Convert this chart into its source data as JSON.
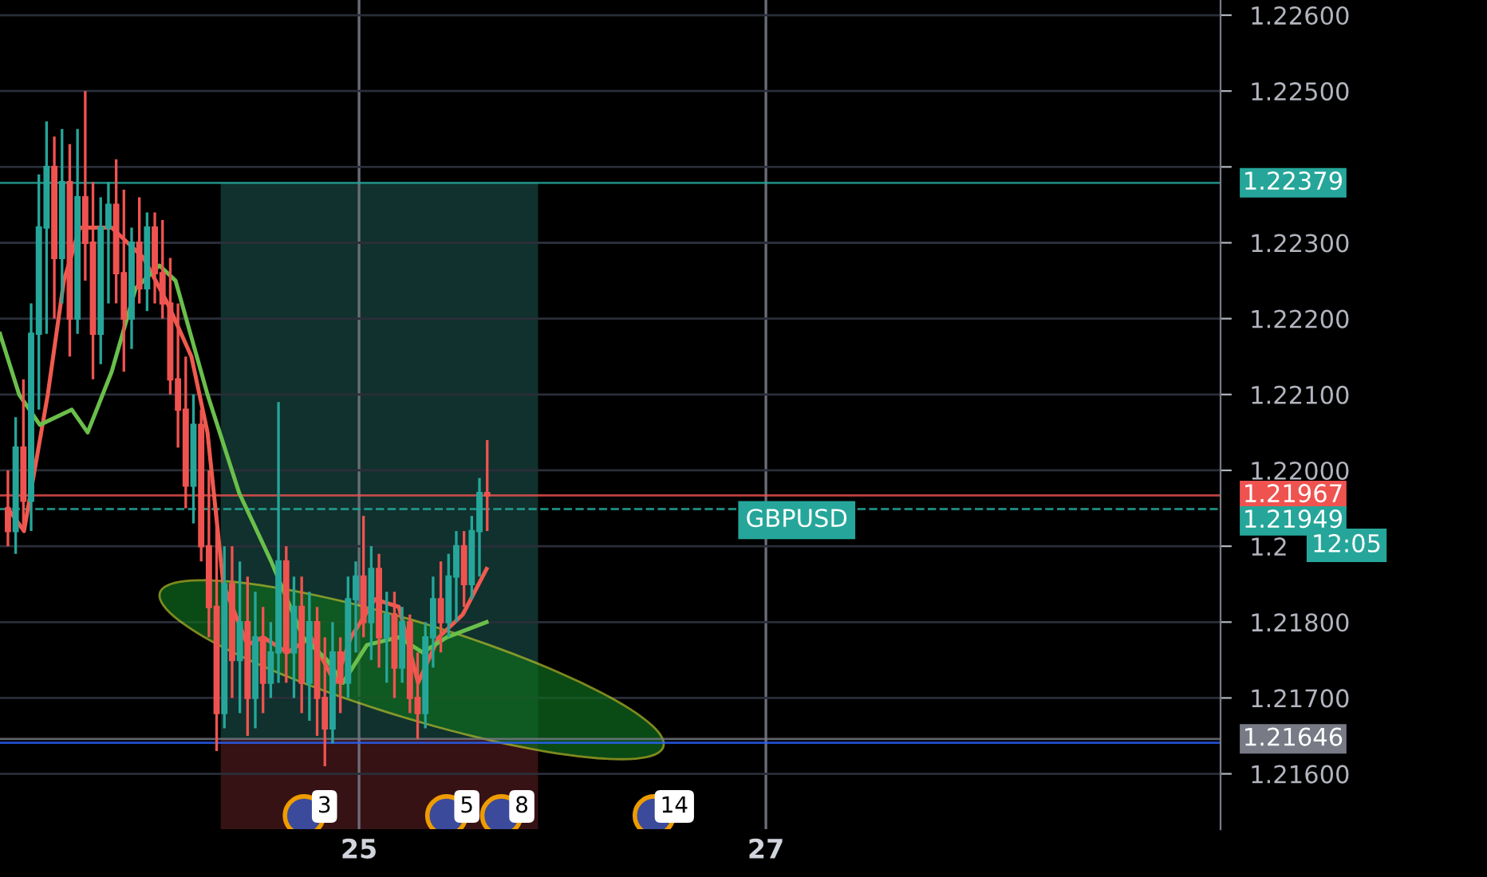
{
  "chart_data": {
    "type": "candlestick",
    "x": [
      23.274,
      23.312,
      23.35,
      23.388,
      23.426,
      23.464,
      23.502,
      23.54,
      23.578,
      23.616,
      23.654,
      23.692,
      23.73,
      23.768,
      23.806,
      23.844,
      23.882,
      23.92,
      23.958,
      23.996,
      24.034,
      24.072,
      24.11,
      24.148,
      24.186,
      24.224,
      24.262,
      24.3,
      24.338,
      24.376,
      24.414,
      24.452,
      24.49,
      24.528,
      24.566,
      24.604,
      24.642,
      24.68,
      24.718,
      24.756,
      24.794,
      24.832,
      24.87,
      24.908,
      24.946,
      24.984,
      25.022,
      25.06,
      25.098,
      25.136,
      25.174,
      25.212,
      25.25,
      25.288,
      25.326,
      25.364,
      25.402,
      25.44,
      25.478,
      25.516,
      25.554,
      25.592,
      25.63
    ],
    "ohlc": [
      [
        1.2195,
        1.22,
        1.219,
        1.2192
      ],
      [
        1.2192,
        1.2207,
        1.2189,
        1.2203
      ],
      [
        1.2203,
        1.2212,
        1.2192,
        1.2196
      ],
      [
        1.2196,
        1.2222,
        1.2192,
        1.2218
      ],
      [
        1.2218,
        1.2239,
        1.2208,
        1.2232
      ],
      [
        1.2232,
        1.2246,
        1.2218,
        1.224
      ],
      [
        1.224,
        1.2244,
        1.222,
        1.2228
      ],
      [
        1.2228,
        1.2245,
        1.2222,
        1.2238
      ],
      [
        1.2238,
        1.2243,
        1.2215,
        1.222
      ],
      [
        1.222,
        1.2245,
        1.2218,
        1.2236
      ],
      [
        1.2236,
        1.225,
        1.2225,
        1.223
      ],
      [
        1.223,
        1.2238,
        1.2212,
        1.2218
      ],
      [
        1.2218,
        1.2236,
        1.2214,
        1.2232
      ],
      [
        1.2232,
        1.2238,
        1.2222,
        1.2235
      ],
      [
        1.2235,
        1.2241,
        1.2222,
        1.2226
      ],
      [
        1.2226,
        1.2237,
        1.2213,
        1.222
      ],
      [
        1.222,
        1.2232,
        1.2216,
        1.223
      ],
      [
        1.223,
        1.2236,
        1.2222,
        1.2224
      ],
      [
        1.2224,
        1.2234,
        1.2221,
        1.2232
      ],
      [
        1.2232,
        1.2234,
        1.2222,
        1.2226
      ],
      [
        1.2226,
        1.2233,
        1.222,
        1.2222
      ],
      [
        1.2222,
        1.2228,
        1.221,
        1.2212
      ],
      [
        1.2212,
        1.2222,
        1.2203,
        1.2208
      ],
      [
        1.2208,
        1.2215,
        1.2195,
        1.2198
      ],
      [
        1.2198,
        1.221,
        1.2193,
        1.2206
      ],
      [
        1.2206,
        1.2208,
        1.2188,
        1.219
      ],
      [
        1.219,
        1.22,
        1.2178,
        1.2182
      ],
      [
        1.2182,
        1.2195,
        1.2163,
        1.2168
      ],
      [
        1.2168,
        1.219,
        1.2166,
        1.2185
      ],
      [
        1.2185,
        1.219,
        1.217,
        1.2175
      ],
      [
        1.2175,
        1.2188,
        1.2168,
        1.218
      ],
      [
        1.218,
        1.2186,
        1.2165,
        1.217
      ],
      [
        1.217,
        1.2184,
        1.2166,
        1.2178
      ],
      [
        1.2178,
        1.2182,
        1.2168,
        1.2172
      ],
      [
        1.2172,
        1.218,
        1.217,
        1.2176
      ],
      [
        1.2176,
        1.2209,
        1.2172,
        1.2188
      ],
      [
        1.2188,
        1.219,
        1.2172,
        1.2176
      ],
      [
        1.2176,
        1.2186,
        1.217,
        1.2182
      ],
      [
        1.2182,
        1.2186,
        1.2168,
        1.2172
      ],
      [
        1.2172,
        1.2184,
        1.2167,
        1.218
      ],
      [
        1.218,
        1.2182,
        1.2165,
        1.217
      ],
      [
        1.217,
        1.2178,
        1.2161,
        1.2166
      ],
      [
        1.2166,
        1.218,
        1.2164,
        1.2176
      ],
      [
        1.2176,
        1.2178,
        1.2168,
        1.2172
      ],
      [
        1.2172,
        1.2186,
        1.217,
        1.2183
      ],
      [
        1.2183,
        1.2188,
        1.2176,
        1.2186
      ],
      [
        1.2186,
        1.2194,
        1.2178,
        1.218
      ],
      [
        1.218,
        1.219,
        1.2175,
        1.2187
      ],
      [
        1.2187,
        1.2189,
        1.2174,
        1.2178
      ],
      [
        1.2178,
        1.2184,
        1.2172,
        1.2181
      ],
      [
        1.2181,
        1.2184,
        1.217,
        1.2174
      ],
      [
        1.2174,
        1.2182,
        1.2172,
        1.218
      ],
      [
        1.218,
        1.2181,
        1.2168,
        1.217
      ],
      [
        1.217,
        1.2176,
        1.21646,
        1.2168
      ],
      [
        1.2168,
        1.218,
        1.2166,
        1.2178
      ],
      [
        1.2178,
        1.2186,
        1.2174,
        1.2183
      ],
      [
        1.2183,
        1.2188,
        1.2176,
        1.218
      ],
      [
        1.218,
        1.2189,
        1.2178,
        1.2186
      ],
      [
        1.2186,
        1.2192,
        1.218,
        1.219
      ],
      [
        1.219,
        1.2192,
        1.2182,
        1.2185
      ],
      [
        1.2185,
        1.2194,
        1.2183,
        1.2192
      ],
      [
        1.2192,
        1.2199,
        1.2186,
        1.2197
      ],
      [
        1.2197,
        1.2204,
        1.2192,
        1.21967
      ]
    ],
    "series": [
      {
        "type": "line",
        "color": "#f05a4f",
        "x": [
          23.274,
          23.353,
          23.47,
          23.549,
          23.627,
          23.784,
          23.941,
          24.059,
          24.176,
          24.255,
          24.333,
          24.451,
          24.529,
          24.647,
          24.764,
          24.882,
          24.96,
          25.078,
          25.196,
          25.29,
          25.392,
          25.51,
          25.627
        ],
        "values": [
          1.2195,
          1.2192,
          1.221,
          1.2225,
          1.2232,
          1.2232,
          1.2228,
          1.2222,
          1.2215,
          1.2205,
          1.2185,
          1.2177,
          1.2178,
          1.2176,
          1.2178,
          1.2172,
          1.2178,
          1.2183,
          1.2182,
          1.2172,
          1.2178,
          1.2181,
          1.2187
        ]
      },
      {
        "type": "line",
        "color": "#6abf4b",
        "x": [
          23.235,
          23.329,
          23.431,
          23.588,
          23.666,
          23.784,
          23.902,
          24.019,
          24.098,
          24.255,
          24.411,
          24.568,
          24.725,
          24.843,
          24.921,
          25.039,
          25.196,
          25.313,
          25.431,
          25.627
        ],
        "values": [
          1.2218,
          1.221,
          1.2206,
          1.2208,
          1.2205,
          1.2213,
          1.2224,
          1.2227,
          1.2225,
          1.221,
          1.2197,
          1.2188,
          1.2178,
          1.2175,
          1.2172,
          1.2177,
          1.2178,
          1.2176,
          1.2178,
          1.218
        ]
      }
    ],
    "xlim": [
      23.235,
      29.235
    ],
    "xticks": [
      {
        "value": 25,
        "label": "25"
      },
      {
        "value": 27,
        "label": "27"
      }
    ],
    "ylim": [
      1.21527,
      1.2262
    ],
    "yticks": [
      {
        "value": 1.216,
        "label": "1.21600"
      },
      {
        "value": 1.217,
        "label": "1.21700"
      },
      {
        "value": 1.218,
        "label": "1.21800"
      },
      {
        "value": 1.219,
        "label": "1.2"
      },
      {
        "value": 1.22,
        "label": "1.22000"
      },
      {
        "value": 1.221,
        "label": "1.22100"
      },
      {
        "value": 1.222,
        "label": "1.22200"
      },
      {
        "value": 1.223,
        "label": "1.22300"
      },
      {
        "value": 1.224,
        "label": null
      },
      {
        "value": 1.225,
        "label": "1.22500"
      },
      {
        "value": 1.226,
        "label": "1.22600"
      }
    ],
    "grid": true,
    "ref_lines": [
      {
        "axis": "y",
        "value": 1.22379,
        "label": "1.22379",
        "color": "#26a69a"
      },
      {
        "axis": "y",
        "value": 1.21967,
        "label": "1.21967",
        "color": "#ef5350"
      },
      {
        "axis": "y",
        "value": 1.21949,
        "label": "1.21949",
        "color": "#26a69a",
        "line_style": "dashed"
      },
      {
        "axis": "y",
        "value": 1.21646,
        "label": "1.21646",
        "color": "#787b86"
      },
      {
        "axis": "y",
        "value": 1.21641,
        "label": null,
        "color": "#2962ff"
      }
    ],
    "annotations": [
      "GBPUSD",
      "12:05",
      "3",
      "5",
      "8",
      "14"
    ]
  }
}
